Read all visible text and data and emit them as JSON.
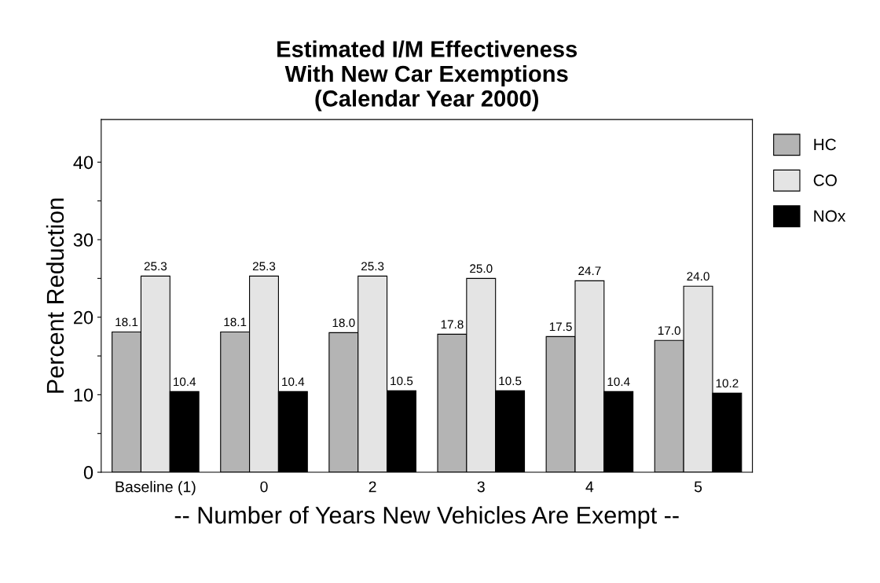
{
  "chart_data": {
    "type": "bar",
    "title": "Estimated I/M Effectiveness\nWith New Car Exemptions\n(Calendar Year 2000)",
    "xlabel": "-- Number of Years New Vehicles Are Exempt --",
    "ylabel": "Percent Reduction",
    "categories": [
      "Baseline (1)",
      "0",
      "2",
      "3",
      "4",
      "5"
    ],
    "series": [
      {
        "name": "HC",
        "color": "#b4b4b4",
        "values": [
          18.1,
          18.1,
          18.0,
          17.8,
          17.5,
          17.0
        ],
        "value_labels": [
          "18.1",
          "18.1",
          "18.0",
          "17.8",
          "17.5",
          "17.0"
        ]
      },
      {
        "name": "CO",
        "color": "#e4e4e4",
        "values": [
          25.3,
          25.3,
          25.3,
          25.0,
          24.7,
          24.0
        ],
        "value_labels": [
          "25.3",
          "25.3",
          "25.3",
          "25.0",
          "24.7",
          "24.0"
        ]
      },
      {
        "name": "NOx",
        "color": "#000000",
        "values": [
          10.4,
          10.4,
          10.5,
          10.5,
          10.4,
          10.2
        ],
        "value_labels": [
          "10.4",
          "10.4",
          "10.5",
          "10.5",
          "10.4",
          "10.2"
        ]
      }
    ],
    "ylim": [
      0,
      45.5
    ],
    "yticks": [
      0,
      {
        "value": 5,
        "label": null
      },
      10,
      {
        "value": 15,
        "label": null
      },
      20,
      {
        "value": 25,
        "label": null
      },
      30,
      {
        "value": 35,
        "label": null
      },
      40
    ],
    "legend": "top right",
    "grid": false
  }
}
